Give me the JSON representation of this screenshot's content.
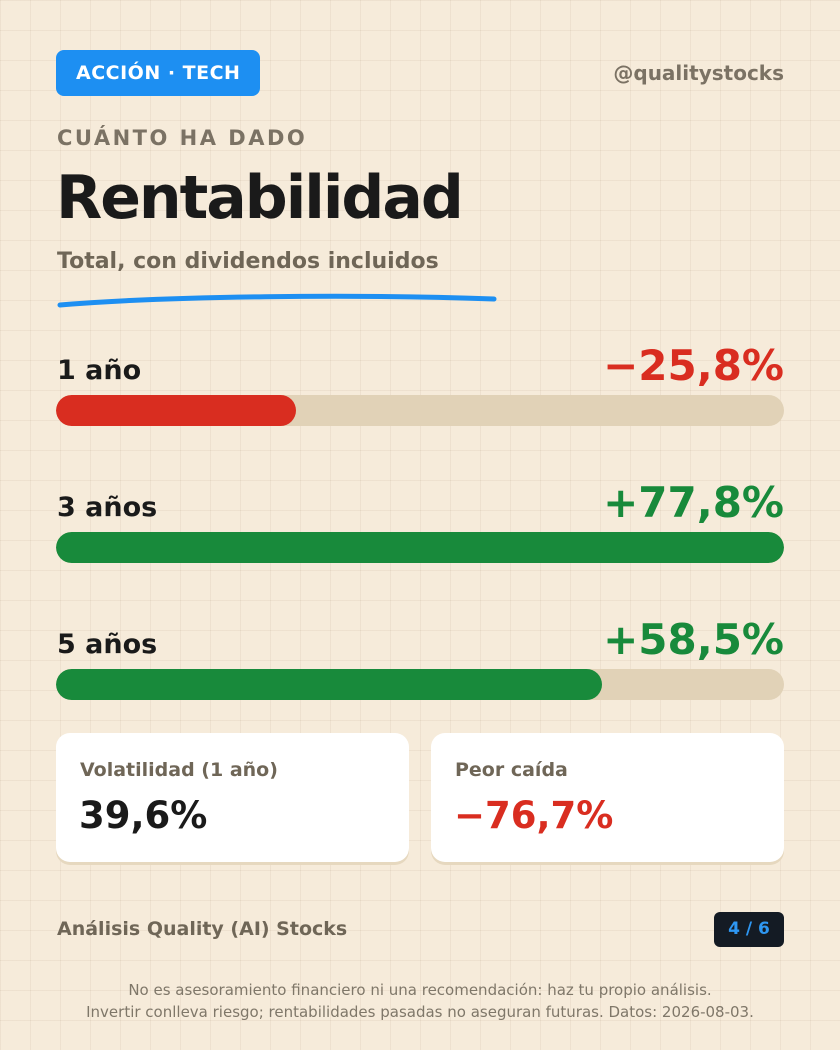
{
  "header": {
    "tag": "ACCIÓN · TECH",
    "handle": "@qualitystocks"
  },
  "hero": {
    "kicker": "CUÁNTO HA DADO",
    "title": "Rentabilidad",
    "subtitle": "Total, con dividendos incluidos"
  },
  "colors": {
    "accent": "#1d8ff2",
    "negative": "#d92d20",
    "positive": "#188a3b",
    "track": "#e1d2b7",
    "background": "#f6ebda"
  },
  "returns": [
    {
      "label": "1 año",
      "value": "−25,8%",
      "fill_fraction": 0.33,
      "tone": "negative"
    },
    {
      "label": "3 años",
      "value": "+77,8%",
      "fill_fraction": 1.0,
      "tone": "positive"
    },
    {
      "label": "5 años",
      "value": "+58,5%",
      "fill_fraction": 0.75,
      "tone": "positive"
    }
  ],
  "stats": {
    "volatility": {
      "label": "Volatilidad (1 año)",
      "value": "39,6%"
    },
    "drawdown": {
      "label": "Peor caída",
      "value": "−76,7%"
    }
  },
  "footer": {
    "brand": "Análisis Quality (AI) Stocks",
    "page": "4 / 6",
    "disclaimer_line1": "No es asesoramiento financiero ni una recomendación: haz tu propio análisis.",
    "disclaimer_line2": "Invertir conlleva riesgo; rentabilidades pasadas no aseguran futuras. Datos: 2026-08-03."
  }
}
